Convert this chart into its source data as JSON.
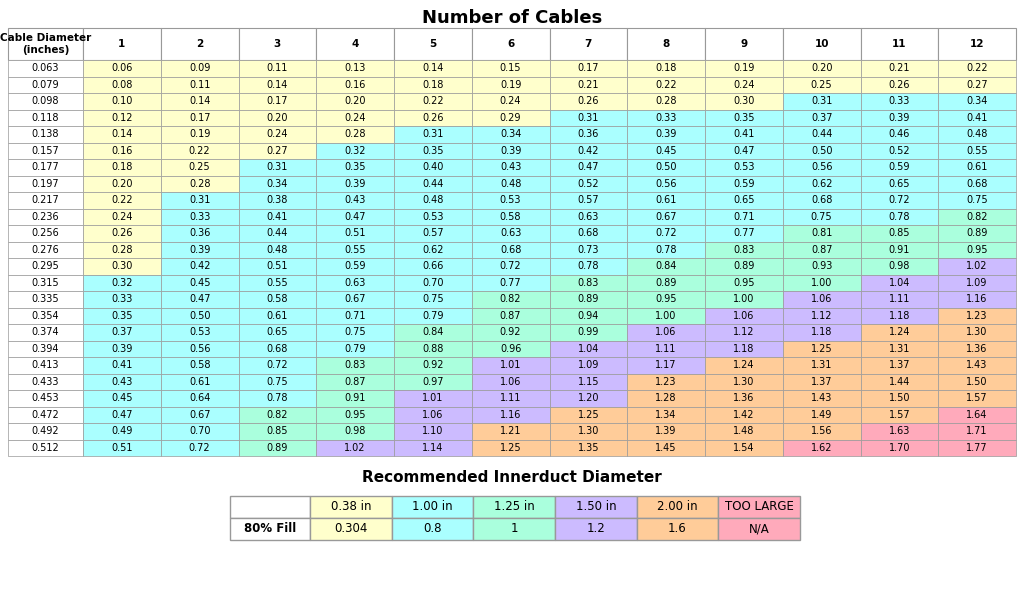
{
  "title1": "Number of Cables",
  "title2": "Recommended Innerduct Diameter",
  "col_headers": [
    "Cable Diameter\n(inches)",
    "1",
    "2",
    "3",
    "4",
    "5",
    "6",
    "7",
    "8",
    "9",
    "10",
    "11",
    "12"
  ],
  "cable_diameters": [
    "0.063",
    "0.079",
    "0.098",
    "0.118",
    "0.138",
    "0.157",
    "0.177",
    "0.197",
    "0.217",
    "0.236",
    "0.256",
    "0.276",
    "0.295",
    "0.315",
    "0.335",
    "0.354",
    "0.374",
    "0.394",
    "0.413",
    "0.433",
    "0.453",
    "0.472",
    "0.492",
    "0.512"
  ],
  "table_data": [
    [
      "0.06",
      "0.09",
      "0.11",
      "0.13",
      "0.14",
      "0.15",
      "0.17",
      "0.18",
      "0.19",
      "0.20",
      "0.21",
      "0.22"
    ],
    [
      "0.08",
      "0.11",
      "0.14",
      "0.16",
      "0.18",
      "0.19",
      "0.21",
      "0.22",
      "0.24",
      "0.25",
      "0.26",
      "0.27"
    ],
    [
      "0.10",
      "0.14",
      "0.17",
      "0.20",
      "0.22",
      "0.24",
      "0.26",
      "0.28",
      "0.30",
      "0.31",
      "0.33",
      "0.34"
    ],
    [
      "0.12",
      "0.17",
      "0.20",
      "0.24",
      "0.26",
      "0.29",
      "0.31",
      "0.33",
      "0.35",
      "0.37",
      "0.39",
      "0.41"
    ],
    [
      "0.14",
      "0.19",
      "0.24",
      "0.28",
      "0.31",
      "0.34",
      "0.36",
      "0.39",
      "0.41",
      "0.44",
      "0.46",
      "0.48"
    ],
    [
      "0.16",
      "0.22",
      "0.27",
      "0.32",
      "0.35",
      "0.39",
      "0.42",
      "0.45",
      "0.47",
      "0.50",
      "0.52",
      "0.55"
    ],
    [
      "0.18",
      "0.25",
      "0.31",
      "0.35",
      "0.40",
      "0.43",
      "0.47",
      "0.50",
      "0.53",
      "0.56",
      "0.59",
      "0.61"
    ],
    [
      "0.20",
      "0.28",
      "0.34",
      "0.39",
      "0.44",
      "0.48",
      "0.52",
      "0.56",
      "0.59",
      "0.62",
      "0.65",
      "0.68"
    ],
    [
      "0.22",
      "0.31",
      "0.38",
      "0.43",
      "0.48",
      "0.53",
      "0.57",
      "0.61",
      "0.65",
      "0.68",
      "0.72",
      "0.75"
    ],
    [
      "0.24",
      "0.33",
      "0.41",
      "0.47",
      "0.53",
      "0.58",
      "0.63",
      "0.67",
      "0.71",
      "0.75",
      "0.78",
      "0.82"
    ],
    [
      "0.26",
      "0.36",
      "0.44",
      "0.51",
      "0.57",
      "0.63",
      "0.68",
      "0.72",
      "0.77",
      "0.81",
      "0.85",
      "0.89"
    ],
    [
      "0.28",
      "0.39",
      "0.48",
      "0.55",
      "0.62",
      "0.68",
      "0.73",
      "0.78",
      "0.83",
      "0.87",
      "0.91",
      "0.95"
    ],
    [
      "0.30",
      "0.42",
      "0.51",
      "0.59",
      "0.66",
      "0.72",
      "0.78",
      "0.84",
      "0.89",
      "0.93",
      "0.98",
      "1.02"
    ],
    [
      "0.32",
      "0.45",
      "0.55",
      "0.63",
      "0.70",
      "0.77",
      "0.83",
      "0.89",
      "0.95",
      "1.00",
      "1.04",
      "1.09"
    ],
    [
      "0.33",
      "0.47",
      "0.58",
      "0.67",
      "0.75",
      "0.82",
      "0.89",
      "0.95",
      "1.00",
      "1.06",
      "1.11",
      "1.16"
    ],
    [
      "0.35",
      "0.50",
      "0.61",
      "0.71",
      "0.79",
      "0.87",
      "0.94",
      "1.00",
      "1.06",
      "1.12",
      "1.18",
      "1.23"
    ],
    [
      "0.37",
      "0.53",
      "0.65",
      "0.75",
      "0.84",
      "0.92",
      "0.99",
      "1.06",
      "1.12",
      "1.18",
      "1.24",
      "1.30"
    ],
    [
      "0.39",
      "0.56",
      "0.68",
      "0.79",
      "0.88",
      "0.96",
      "1.04",
      "1.11",
      "1.18",
      "1.25",
      "1.31",
      "1.36"
    ],
    [
      "0.41",
      "0.58",
      "0.72",
      "0.83",
      "0.92",
      "1.01",
      "1.09",
      "1.17",
      "1.24",
      "1.31",
      "1.37",
      "1.43"
    ],
    [
      "0.43",
      "0.61",
      "0.75",
      "0.87",
      "0.97",
      "1.06",
      "1.15",
      "1.23",
      "1.30",
      "1.37",
      "1.44",
      "1.50"
    ],
    [
      "0.45",
      "0.64",
      "0.78",
      "0.91",
      "1.01",
      "1.11",
      "1.20",
      "1.28",
      "1.36",
      "1.43",
      "1.50",
      "1.57"
    ],
    [
      "0.47",
      "0.67",
      "0.82",
      "0.95",
      "1.06",
      "1.16",
      "1.25",
      "1.34",
      "1.42",
      "1.49",
      "1.57",
      "1.64"
    ],
    [
      "0.49",
      "0.70",
      "0.85",
      "0.98",
      "1.10",
      "1.21",
      "1.30",
      "1.39",
      "1.48",
      "1.56",
      "1.63",
      "1.71"
    ],
    [
      "0.51",
      "0.72",
      "0.89",
      "1.02",
      "1.14",
      "1.25",
      "1.35",
      "1.45",
      "1.54",
      "1.62",
      "1.70",
      "1.77"
    ]
  ],
  "color_yellow": "#FFFFCC",
  "color_cyan": "#AAFFFF",
  "color_teal": "#AAFFDD",
  "color_purple": "#CCBBFF",
  "color_orange": "#FFCC99",
  "color_pink": "#FFAABB",
  "color_white": "#FFFFFF",
  "thresholds": [
    0.304,
    0.8,
    1.0,
    1.2,
    1.6
  ],
  "legend_row1": [
    "",
    "0.38 in",
    "1.00 in",
    "1.25 in",
    "1.50 in",
    "2.00 in",
    "TOO LARGE"
  ],
  "legend_row2": [
    "80% Fill",
    "0.304",
    "0.8",
    "1",
    "1.2",
    "1.6",
    "N/A"
  ],
  "bg_color": "#FFFFFF",
  "edge_color": "#999999",
  "title1_fontsize": 13,
  "title2_fontsize": 11,
  "cell_fontsize": 7.0,
  "header_fontsize": 7.5
}
